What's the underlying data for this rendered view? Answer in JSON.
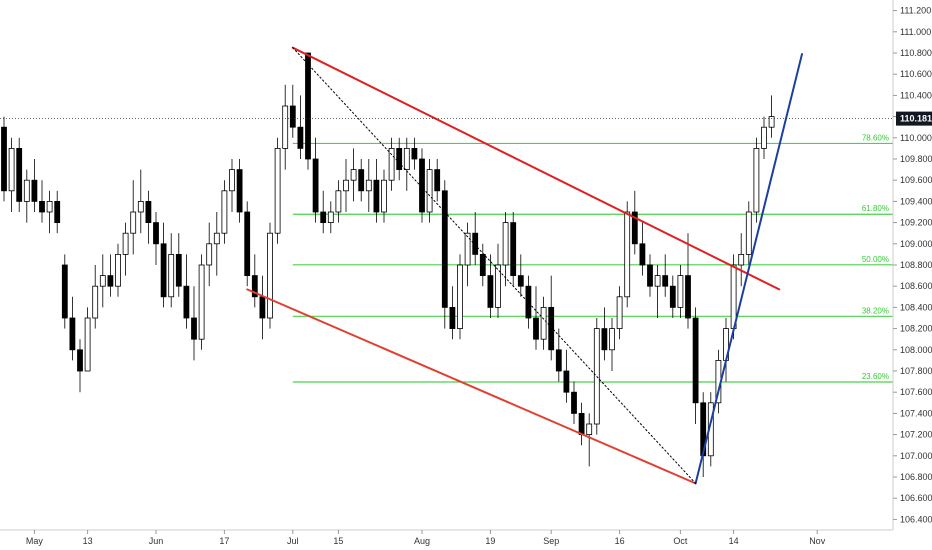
{
  "chart_data": {
    "type": "candlestick",
    "y_range": [
      106.3,
      111.3
    ],
    "y_ticks": [
      "106.400",
      "106.600",
      "106.800",
      "107.000",
      "107.200",
      "107.400",
      "107.600",
      "107.800",
      "108.000",
      "108.200",
      "108.400",
      "108.600",
      "108.800",
      "109.000",
      "109.200",
      "109.400",
      "109.600",
      "109.800",
      "110.000",
      "110.200",
      "110.400",
      "110.600",
      "110.800",
      "111.000",
      "111.200"
    ],
    "x_ticks": [
      {
        "label": "May",
        "bar": 4
      },
      {
        "label": "13",
        "bar": 11
      },
      {
        "label": "Jun",
        "bar": 20
      },
      {
        "label": "17",
        "bar": 29
      },
      {
        "label": "Jul",
        "bar": 38
      },
      {
        "label": "15",
        "bar": 44
      },
      {
        "label": "Aug",
        "bar": 55
      },
      {
        "label": "19",
        "bar": 64
      },
      {
        "label": "Sep",
        "bar": 72
      },
      {
        "label": "16",
        "bar": 81
      },
      {
        "label": "Oct",
        "bar": 89
      },
      {
        "label": "14",
        "bar": 96
      },
      {
        "label": "Nov",
        "bar": 107
      }
    ],
    "last_price": {
      "value": 110.181,
      "label": "110.181"
    },
    "fib_levels": [
      {
        "label": "78.60%",
        "value": 109.947
      },
      {
        "label": "61.80%",
        "value": 109.279
      },
      {
        "label": "50.00%",
        "value": 108.802
      },
      {
        "label": "38.20%",
        "value": 108.316
      },
      {
        "label": "23.60%",
        "value": 107.696
      }
    ],
    "fib_start_bar": 38,
    "trend_lines": [
      {
        "color": "#e02020",
        "from": [
          38,
          110.85
        ],
        "to": [
          102,
          108.57
        ]
      },
      {
        "color": "#e04030",
        "from": [
          32,
          108.57
        ],
        "to": [
          91,
          106.74
        ]
      },
      {
        "color": "#1a3fa0",
        "from": [
          91,
          106.74
        ],
        "to": [
          105,
          110.79
        ]
      },
      {
        "color": "#000000",
        "dashed": true,
        "from": [
          38,
          110.85
        ],
        "to": [
          91,
          106.74
        ]
      }
    ],
    "candles": [
      [
        110.1,
        110.2,
        109.4,
        109.5
      ],
      [
        109.5,
        110.0,
        109.3,
        109.9
      ],
      [
        109.9,
        110.0,
        109.3,
        109.4
      ],
      [
        109.4,
        109.7,
        109.2,
        109.6
      ],
      [
        109.6,
        109.8,
        109.3,
        109.4
      ],
      [
        109.4,
        109.6,
        109.2,
        109.3
      ],
      [
        109.3,
        109.5,
        109.1,
        109.4
      ],
      [
        109.4,
        109.5,
        109.1,
        109.2
      ],
      [
        108.8,
        108.9,
        108.2,
        108.3
      ],
      [
        108.3,
        108.5,
        107.9,
        108.0
      ],
      [
        108.0,
        108.1,
        107.6,
        107.8
      ],
      [
        107.8,
        108.4,
        107.8,
        108.3
      ],
      [
        108.3,
        108.8,
        108.2,
        108.6
      ],
      [
        108.6,
        108.9,
        108.4,
        108.7
      ],
      [
        108.7,
        108.9,
        108.5,
        108.6
      ],
      [
        108.6,
        109.0,
        108.5,
        108.9
      ],
      [
        108.9,
        109.2,
        108.7,
        109.1
      ],
      [
        109.1,
        109.6,
        108.9,
        109.3
      ],
      [
        109.3,
        109.7,
        109.1,
        109.4
      ],
      [
        109.4,
        109.5,
        109.0,
        109.2
      ],
      [
        109.2,
        109.3,
        108.8,
        109.0
      ],
      [
        109.0,
        109.2,
        108.4,
        108.5
      ],
      [
        108.5,
        109.1,
        108.4,
        108.9
      ],
      [
        108.9,
        109.1,
        108.5,
        108.6
      ],
      [
        108.6,
        108.9,
        108.2,
        108.3
      ],
      [
        108.3,
        108.6,
        107.9,
        108.1
      ],
      [
        108.1,
        108.9,
        108.0,
        108.8
      ],
      [
        108.8,
        109.2,
        108.6,
        109.0
      ],
      [
        109.0,
        109.3,
        108.7,
        109.1
      ],
      [
        109.1,
        109.6,
        109.0,
        109.5
      ],
      [
        109.5,
        109.8,
        109.3,
        109.7
      ],
      [
        109.7,
        109.8,
        109.2,
        109.3
      ],
      [
        109.3,
        109.4,
        108.6,
        108.7
      ],
      [
        108.7,
        108.9,
        108.4,
        108.5
      ],
      [
        108.5,
        108.7,
        108.1,
        108.3
      ],
      [
        108.3,
        109.2,
        108.2,
        109.1
      ],
      [
        109.1,
        110.0,
        109.0,
        109.9
      ],
      [
        109.9,
        110.5,
        109.7,
        110.3
      ],
      [
        110.3,
        110.5,
        110.0,
        110.1
      ],
      [
        110.1,
        110.4,
        109.8,
        109.9
      ],
      [
        110.8,
        110.8,
        109.7,
        109.8
      ],
      [
        109.8,
        110.0,
        109.2,
        109.3
      ],
      [
        109.3,
        109.5,
        109.1,
        109.2
      ],
      [
        109.2,
        109.4,
        109.1,
        109.3
      ],
      [
        109.3,
        109.6,
        109.2,
        109.5
      ],
      [
        109.5,
        109.8,
        109.3,
        109.6
      ],
      [
        109.6,
        109.9,
        109.4,
        109.7
      ],
      [
        109.7,
        109.8,
        109.4,
        109.5
      ],
      [
        109.5,
        109.8,
        109.3,
        109.6
      ],
      [
        109.6,
        109.8,
        109.2,
        109.3
      ],
      [
        109.3,
        109.7,
        109.2,
        109.6
      ],
      [
        109.6,
        110.0,
        109.5,
        109.9
      ],
      [
        109.9,
        110.0,
        109.6,
        109.7
      ],
      [
        109.7,
        110.0,
        109.5,
        109.9
      ],
      [
        109.9,
        110.0,
        109.7,
        109.8
      ],
      [
        109.8,
        109.9,
        109.2,
        109.3
      ],
      [
        109.3,
        109.8,
        109.2,
        109.7
      ],
      [
        109.7,
        109.8,
        109.4,
        109.5
      ],
      [
        109.5,
        109.6,
        108.2,
        108.4
      ],
      [
        108.4,
        108.6,
        108.1,
        108.2
      ],
      [
        108.2,
        108.9,
        108.1,
        108.8
      ],
      [
        108.8,
        109.2,
        108.6,
        109.1
      ],
      [
        109.1,
        109.3,
        108.8,
        108.9
      ],
      [
        108.9,
        109.0,
        108.6,
        108.7
      ],
      [
        108.7,
        108.9,
        108.3,
        108.4
      ],
      [
        108.4,
        109.0,
        108.3,
        108.8
      ],
      [
        108.8,
        109.3,
        108.6,
        109.2
      ],
      [
        109.2,
        109.3,
        108.6,
        108.7
      ],
      [
        108.7,
        108.9,
        108.5,
        108.6
      ],
      [
        108.6,
        108.7,
        108.2,
        108.3
      ],
      [
        108.3,
        108.6,
        108.0,
        108.1
      ],
      [
        108.1,
        108.5,
        108.0,
        108.4
      ],
      [
        108.4,
        108.7,
        107.9,
        108.0
      ],
      [
        108.0,
        108.2,
        107.7,
        107.8
      ],
      [
        107.8,
        108.0,
        107.5,
        107.6
      ],
      [
        107.6,
        107.7,
        107.3,
        107.4
      ],
      [
        107.4,
        107.5,
        107.1,
        107.2
      ],
      [
        107.2,
        107.4,
        106.9,
        107.3
      ],
      [
        107.3,
        108.3,
        107.2,
        108.2
      ],
      [
        108.2,
        108.4,
        107.9,
        108.0
      ],
      [
        108.0,
        108.3,
        107.8,
        108.2
      ],
      [
        108.2,
        108.6,
        108.1,
        108.5
      ],
      [
        108.5,
        109.4,
        108.4,
        109.3
      ],
      [
        109.3,
        109.5,
        108.9,
        109.0
      ],
      [
        109.0,
        109.2,
        108.7,
        108.8
      ],
      [
        108.8,
        108.9,
        108.5,
        108.6
      ],
      [
        108.6,
        108.8,
        108.3,
        108.7
      ],
      [
        108.7,
        108.9,
        108.5,
        108.6
      ],
      [
        108.6,
        108.7,
        108.3,
        108.4
      ],
      [
        108.4,
        108.8,
        108.3,
        108.7
      ],
      [
        108.7,
        109.1,
        108.2,
        108.3
      ],
      [
        108.3,
        108.4,
        107.3,
        107.5
      ],
      [
        107.5,
        107.6,
        106.8,
        107.0
      ],
      [
        107.0,
        107.6,
        106.9,
        107.5
      ],
      [
        107.5,
        108.0,
        107.4,
        107.9
      ],
      [
        107.9,
        108.3,
        107.7,
        108.2
      ],
      [
        108.2,
        108.9,
        108.1,
        108.8
      ],
      [
        108.8,
        109.1,
        108.6,
        108.9
      ],
      [
        108.9,
        109.4,
        108.8,
        109.3
      ],
      [
        109.3,
        110.0,
        109.2,
        109.9
      ],
      [
        109.9,
        110.2,
        109.8,
        110.1
      ],
      [
        110.1,
        110.4,
        110.0,
        110.2
      ]
    ]
  }
}
